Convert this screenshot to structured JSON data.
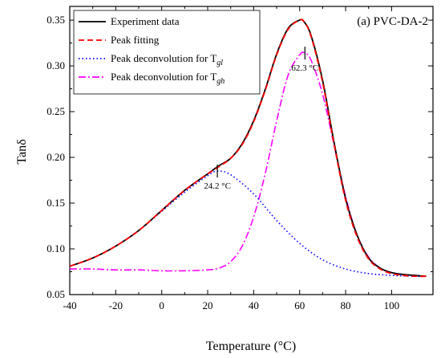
{
  "chart_data": {
    "type": "line",
    "title": "(a) PVC-DA-2",
    "xlabel": "Temperature (°C)",
    "ylabel": "Tanδ",
    "xlim": [
      -40,
      118
    ],
    "ylim": [
      0.05,
      0.365
    ],
    "xticks": [
      -40,
      -20,
      0,
      20,
      40,
      60,
      80,
      100
    ],
    "xtick_labels": [
      "-40",
      "-20",
      "0",
      "20",
      "40",
      "60",
      "80",
      "100"
    ],
    "yticks": [
      0.05,
      0.1,
      0.15,
      0.2,
      0.25,
      0.3,
      0.35
    ],
    "ytick_labels": [
      "0.05",
      "0.10",
      "0.15",
      "0.20",
      "0.25",
      "0.30",
      "0.35"
    ],
    "grid": false,
    "legend_position": "top-left",
    "series": [
      {
        "name": "Experiment data",
        "color": "#000000",
        "style": "solid",
        "x": [
          -40,
          -30,
          -20,
          -10,
          0,
          10,
          20,
          25,
          30,
          35,
          40,
          45,
          50,
          55,
          60,
          62,
          65,
          70,
          75,
          80,
          85,
          90,
          95,
          100,
          105,
          110,
          115
        ],
        "y": [
          0.081,
          0.09,
          0.103,
          0.12,
          0.142,
          0.164,
          0.182,
          0.191,
          0.199,
          0.215,
          0.24,
          0.274,
          0.313,
          0.341,
          0.35,
          0.348,
          0.333,
          0.284,
          0.216,
          0.155,
          0.115,
          0.09,
          0.079,
          0.074,
          0.072,
          0.071,
          0.07
        ]
      },
      {
        "name": "Peak fitting",
        "color": "#ff0000",
        "style": "dashed",
        "x": [
          -40,
          -30,
          -20,
          -10,
          0,
          10,
          20,
          25,
          30,
          35,
          40,
          45,
          50,
          55,
          60,
          62,
          65,
          70,
          75,
          80,
          85,
          90,
          95,
          100,
          105,
          110,
          115
        ],
        "y": [
          0.081,
          0.09,
          0.103,
          0.12,
          0.142,
          0.164,
          0.182,
          0.19,
          0.199,
          0.214,
          0.239,
          0.273,
          0.312,
          0.34,
          0.35,
          0.348,
          0.332,
          0.282,
          0.214,
          0.153,
          0.113,
          0.089,
          0.078,
          0.073,
          0.071,
          0.07,
          0.07
        ]
      },
      {
        "name": "Peak deconvolution for T",
        "name_subscript": "gl",
        "color": "#0000ff",
        "style": "dotted",
        "x": [
          -40,
          -30,
          -20,
          -10,
          0,
          10,
          20,
          24.2,
          30,
          40,
          50,
          60,
          70,
          80,
          90,
          100,
          110,
          115
        ],
        "y": [
          0.081,
          0.09,
          0.103,
          0.12,
          0.141,
          0.162,
          0.18,
          0.185,
          0.181,
          0.16,
          0.131,
          0.106,
          0.088,
          0.078,
          0.073,
          0.071,
          0.07,
          0.07
        ]
      },
      {
        "name": "Peak deconvolution for T",
        "name_subscript": "gh",
        "color": "#ff00ff",
        "style": "dashdot",
        "x": [
          -40,
          -30,
          -20,
          -10,
          0,
          10,
          20,
          25,
          30,
          35,
          40,
          45,
          50,
          55,
          60,
          62.3,
          65,
          70,
          75,
          80,
          85,
          90,
          95,
          100,
          105,
          110,
          115
        ],
        "y": [
          0.078,
          0.078,
          0.077,
          0.077,
          0.076,
          0.076,
          0.077,
          0.079,
          0.086,
          0.103,
          0.135,
          0.182,
          0.24,
          0.29,
          0.312,
          0.314,
          0.306,
          0.269,
          0.213,
          0.157,
          0.115,
          0.091,
          0.079,
          0.074,
          0.072,
          0.071,
          0.07
        ]
      }
    ],
    "annotations": [
      {
        "text": "24.2 °C",
        "x": 24.2,
        "y": 0.185
      },
      {
        "text": "62.3 °C",
        "x": 62.3,
        "y": 0.314
      }
    ]
  }
}
